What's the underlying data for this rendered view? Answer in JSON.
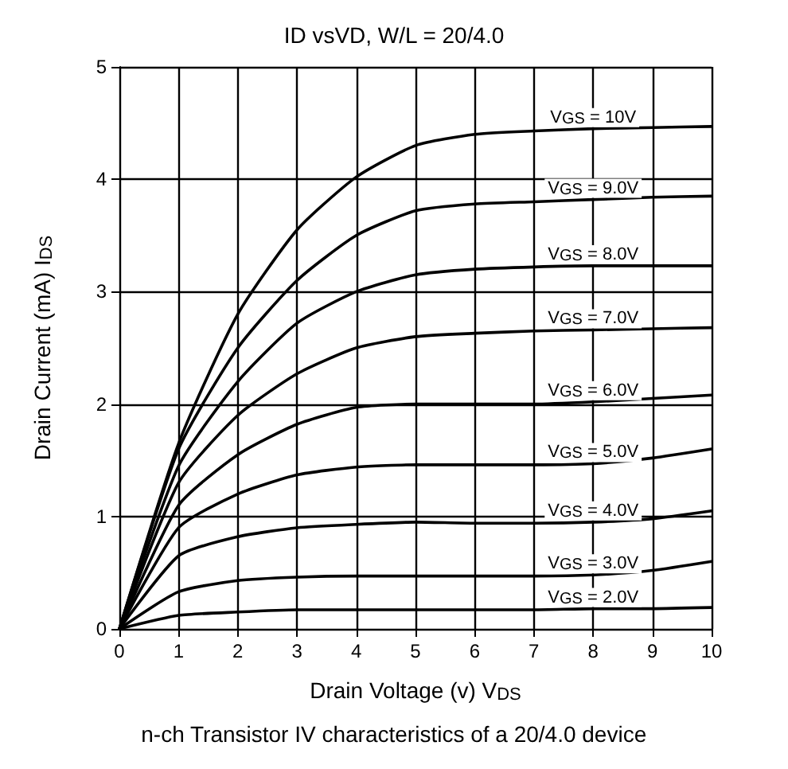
{
  "chart_data": {
    "type": "line",
    "title": "ID vsVD, W/L = 20/4.0",
    "xlabel": "Drain Voltage (v) V$_{DS}$",
    "ylabel": "Drain Current (mA) I$_{DS}$",
    "annotations": [
      "n-ch Transistor IV characteristics of a 20/4.0 device"
    ],
    "x": [
      0,
      1,
      2,
      3,
      4,
      5,
      6,
      7,
      8,
      9,
      10
    ],
    "series": [
      {
        "name": "V$_{GS}$ = 10V",
        "color": "#000000",
        "values": [
          0,
          1.65,
          2.8,
          3.55,
          4.02,
          4.3,
          4.4,
          4.43,
          4.45,
          4.46,
          4.47
        ]
      },
      {
        "name": "V$_{GS}$ = 9.0V",
        "color": "#000000",
        "values": [
          0,
          1.6,
          2.5,
          3.1,
          3.5,
          3.72,
          3.78,
          3.8,
          3.82,
          3.84,
          3.85
        ]
      },
      {
        "name": "V$_{GS}$ = 8.0V",
        "color": "#000000",
        "values": [
          0,
          1.45,
          2.2,
          2.72,
          3.0,
          3.15,
          3.2,
          3.22,
          3.23,
          3.23,
          3.23
        ]
      },
      {
        "name": "V$_{GS}$ = 7.0V",
        "color": "#000000",
        "values": [
          0,
          1.3,
          1.9,
          2.27,
          2.5,
          2.6,
          2.63,
          2.65,
          2.66,
          2.67,
          2.68
        ]
      },
      {
        "name": "V$_{GS}$ = 6.0V",
        "color": "#000000",
        "values": [
          0,
          1.1,
          1.55,
          1.82,
          1.97,
          2.0,
          2.0,
          2.0,
          2.02,
          2.05,
          2.08
        ]
      },
      {
        "name": "V$_{GS}$ = 5.0V",
        "color": "#000000",
        "values": [
          0,
          0.9,
          1.2,
          1.37,
          1.44,
          1.46,
          1.46,
          1.46,
          1.47,
          1.52,
          1.6
        ]
      },
      {
        "name": "V$_{GS}$ = 4.0V",
        "color": "#000000",
        "values": [
          0,
          0.65,
          0.82,
          0.9,
          0.93,
          0.95,
          0.94,
          0.94,
          0.95,
          0.98,
          1.05
        ]
      },
      {
        "name": "V$_{GS}$ = 3.0V",
        "color": "#000000",
        "values": [
          0,
          0.33,
          0.43,
          0.46,
          0.47,
          0.47,
          0.47,
          0.47,
          0.48,
          0.52,
          0.6
        ]
      },
      {
        "name": "V$_{GS}$ = 2.0V",
        "color": "#000000",
        "values": [
          0,
          0.12,
          0.15,
          0.17,
          0.17,
          0.17,
          0.17,
          0.17,
          0.18,
          0.18,
          0.19
        ]
      }
    ],
    "xlim": [
      0,
      10
    ],
    "xticks": [
      0,
      1,
      2,
      3,
      4,
      5,
      6,
      7,
      8,
      9,
      10
    ],
    "ylim": [
      0,
      5
    ],
    "yticks": [
      0,
      1,
      2,
      3,
      4,
      5
    ],
    "grid": true,
    "legend": false,
    "marker": "none",
    "line_style": "solid"
  }
}
